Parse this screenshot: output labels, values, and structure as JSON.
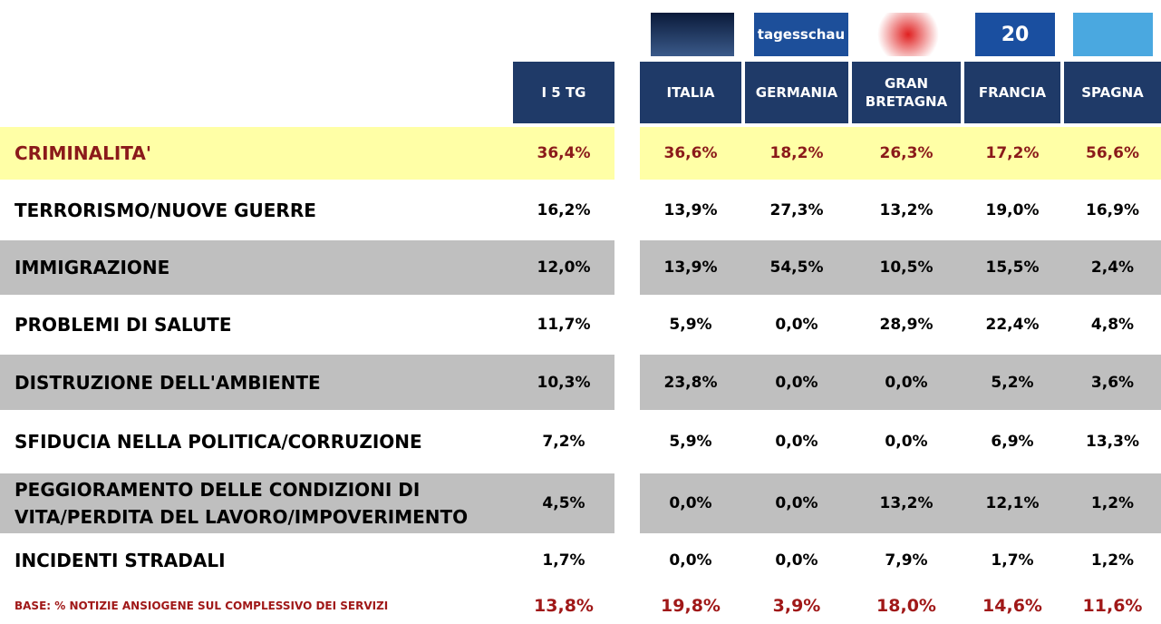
{
  "logos": {
    "germania": "tagesschau",
    "francia": "20"
  },
  "table": {
    "columns": [
      "I 5 TG",
      "ITALIA",
      "GERMANIA",
      "GRAN BRETAGNA",
      "FRANCIA",
      "SPAGNA"
    ],
    "rows": [
      {
        "label": "CRIMINALITA'",
        "values": [
          "36,4%",
          "36,6%",
          "18,2%",
          "26,3%",
          "17,2%",
          "56,6%"
        ]
      },
      {
        "label": "TERRORISMO/NUOVE GUERRE",
        "values": [
          "16,2%",
          "13,9%",
          "27,3%",
          "13,2%",
          "19,0%",
          "16,9%"
        ]
      },
      {
        "label": "IMMIGRAZIONE",
        "values": [
          "12,0%",
          "13,9%",
          "54,5%",
          "10,5%",
          "15,5%",
          "2,4%"
        ]
      },
      {
        "label": "PROBLEMI DI SALUTE",
        "values": [
          "11,7%",
          "5,9%",
          "0,0%",
          "28,9%",
          "22,4%",
          "4,8%"
        ]
      },
      {
        "label": "DISTRUZIONE DELL'AMBIENTE",
        "values": [
          "10,3%",
          "23,8%",
          "0,0%",
          "0,0%",
          "5,2%",
          "3,6%"
        ]
      },
      {
        "label": "SFIDUCIA NELLA POLITICA/CORRUZIONE",
        "values": [
          "7,2%",
          "5,9%",
          "0,0%",
          "0,0%",
          "6,9%",
          "13,3%"
        ]
      },
      {
        "label": "PEGGIORAMENTO DELLE CONDIZIONI DI VITA/PERDITA DEL LAVORO/IMPOVERIMENTO",
        "values": [
          "4,5%",
          "0,0%",
          "0,0%",
          "13,2%",
          "12,1%",
          "1,2%"
        ]
      },
      {
        "label": "INCIDENTI STRADALI",
        "values": [
          "1,7%",
          "0,0%",
          "0,0%",
          "7,9%",
          "1,7%",
          "1,2%"
        ]
      }
    ],
    "base": {
      "label": "BASE: % NOTIZIE ANSIOGENE SUL COMPLESSIVO DEI SERVIZI",
      "values": [
        "13,8%",
        "19,8%",
        "3,9%",
        "18,0%",
        "14,6%",
        "11,6%"
      ]
    }
  }
}
